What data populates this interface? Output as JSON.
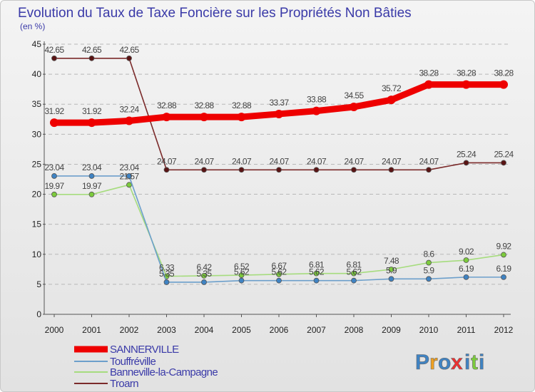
{
  "chart_data": {
    "type": "line",
    "title": "Evolution du Taux de Taxe Foncière sur les Propriétés Non Bâties",
    "subtitle": "(en %)",
    "xlabel": "",
    "ylabel": "",
    "ylim": [
      0,
      45
    ],
    "yticks": [
      "0",
      "5",
      "10",
      "15",
      "20",
      "25",
      "30",
      "35",
      "40",
      "45"
    ],
    "categories": [
      "2000",
      "2001",
      "2002",
      "2003",
      "2004",
      "2005",
      "2006",
      "2007",
      "2008",
      "2009",
      "2010",
      "2011",
      "2012"
    ],
    "series": [
      {
        "name": "Troarn",
        "color": "#7b2a2a",
        "dot": "#5a1414",
        "values": [
          42.65,
          42.65,
          42.65,
          24.07,
          24.07,
          24.07,
          24.07,
          24.07,
          24.07,
          24.07,
          24.07,
          25.24,
          25.24
        ],
        "labels": [
          "42.65",
          "42.65",
          "42.65",
          "24.07",
          "24.07",
          "24.07",
          "24.07",
          "24.07",
          "24.07",
          "24.07",
          "24.07",
          "25.24",
          "25.24"
        ]
      },
      {
        "name": "Banneville-la-Campagne",
        "color": "#a6dc7e",
        "dot": "#7ccb3c",
        "values": [
          19.97,
          19.97,
          21.57,
          6.33,
          6.42,
          6.52,
          6.67,
          6.81,
          6.81,
          7.48,
          8.6,
          9.02,
          9.92
        ],
        "labels": [
          "19.97",
          "19.97",
          "21.57",
          "6.33",
          "6.42",
          "6.52",
          "6.67",
          "6.81",
          "6.81",
          "7.48",
          "8.6",
          "9.02",
          "9.92"
        ]
      },
      {
        "name": "Touffréville",
        "color": "#6c9fcb",
        "dot": "#3f83c3",
        "values": [
          23.04,
          23.04,
          23.04,
          5.35,
          5.35,
          5.62,
          5.62,
          5.62,
          5.62,
          5.9,
          5.9,
          6.19,
          6.19
        ],
        "labels": [
          "23.04",
          "23.04",
          "23.04",
          "5.35",
          "5.35",
          "5.62",
          "5.62",
          "5.62",
          "5.62",
          "5.9",
          "5.9",
          "6.19",
          "6.19"
        ]
      },
      {
        "name": "SANNERVILLE",
        "color": "#ee0000",
        "dot": "#ee0000",
        "values": [
          31.92,
          31.92,
          32.24,
          32.88,
          32.88,
          32.88,
          33.37,
          33.88,
          34.55,
          35.72,
          38.28,
          38.28,
          38.28
        ],
        "labels": [
          "31.92",
          "31.92",
          "32.24",
          "32.88",
          "32.88",
          "32.88",
          "33.37",
          "33.88",
          "34.55",
          "35.72",
          "38.28",
          "38.28",
          "38.28"
        ]
      }
    ],
    "legend": [
      "SANNERVILLE",
      "Touffréville",
      "Banneville-la-Campagne",
      "Troarn"
    ],
    "grid": "dashed horizontal",
    "legend_position": "bottom-left"
  },
  "branding": {
    "logo_text": "Proxiti",
    "logo_letters": [
      "P",
      "r",
      "o",
      "x",
      "i",
      "t",
      "i"
    ],
    "logo_colors": [
      "#3f83c3",
      "#f0a020",
      "#3f83c3",
      "#ee3030",
      "#3f83c3",
      "#7ccb3c",
      "#3f83c3"
    ]
  }
}
